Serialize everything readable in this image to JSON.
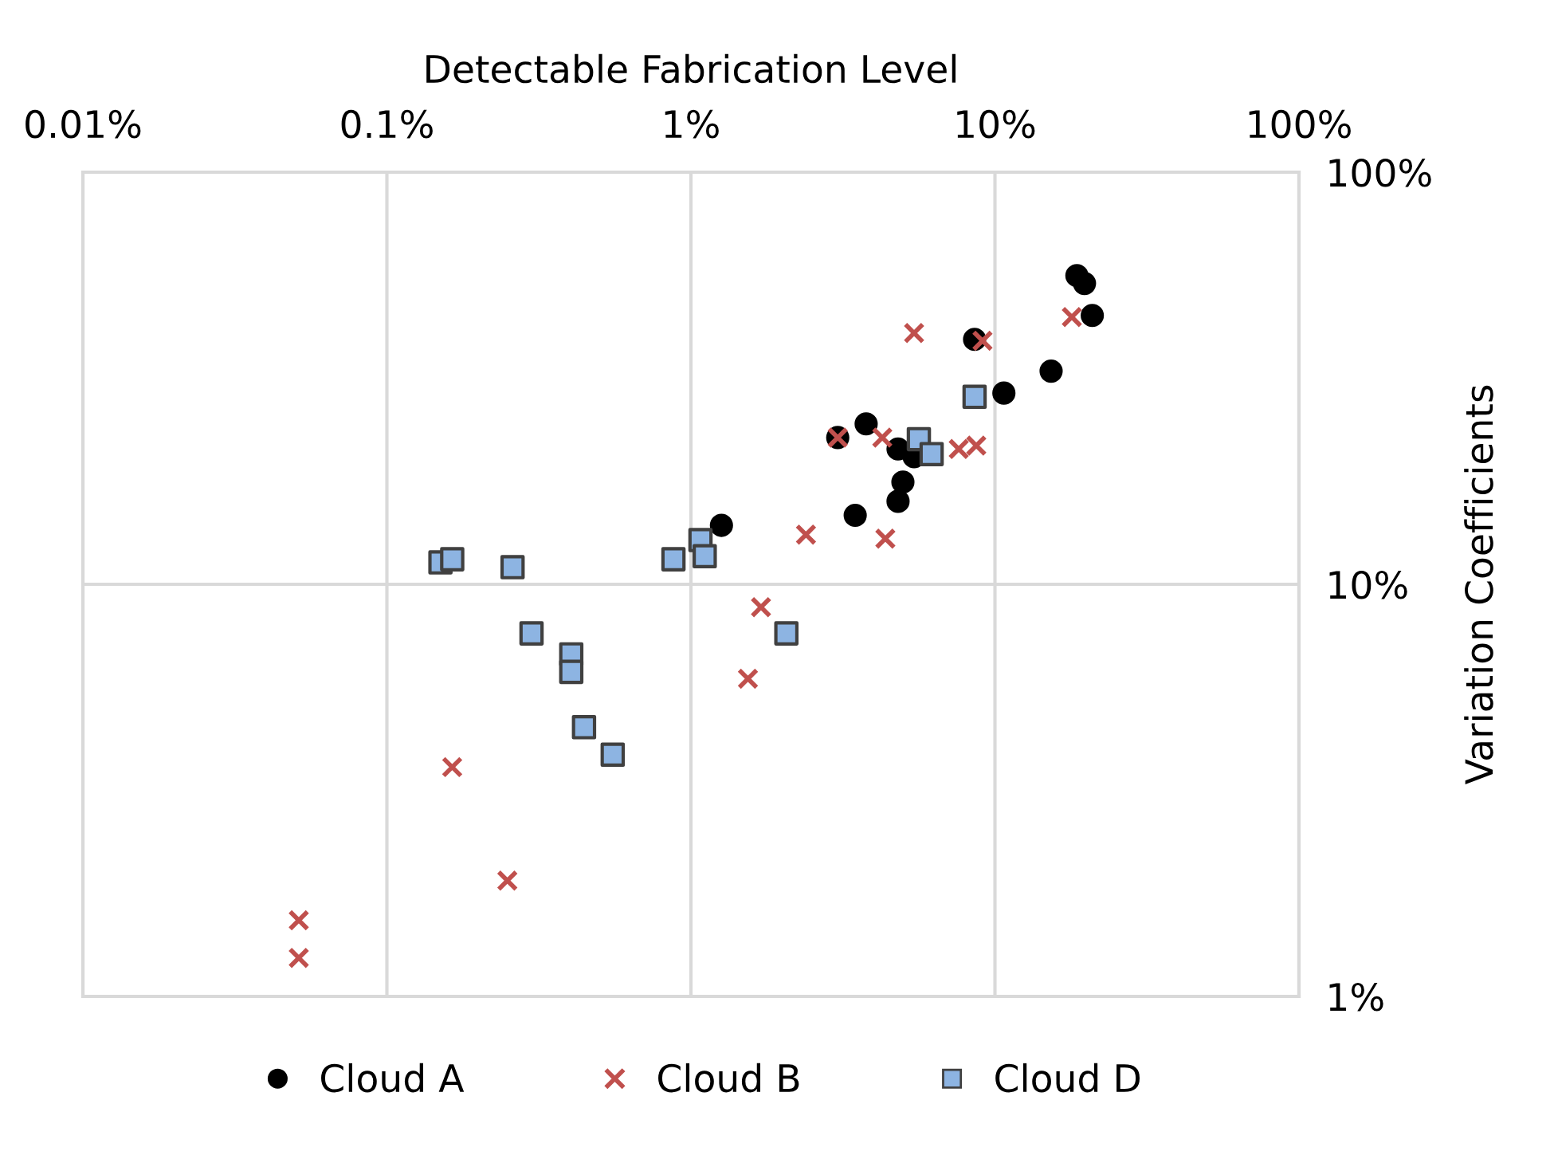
{
  "chart_data": {
    "type": "scatter",
    "xlabel": "Detectable Fabrication Level",
    "ylabel": "Variation Coefficients",
    "log": "xy",
    "grid": true,
    "legend": "bottom",
    "xlim": [
      0.01,
      100
    ],
    "ylim": [
      1,
      100
    ],
    "xticks": [
      {
        "value": 0.01,
        "label": "0.01%"
      },
      {
        "value": 0.1,
        "label": "0.1%"
      },
      {
        "value": 1,
        "label": "1%"
      },
      {
        "value": 10,
        "label": "10%"
      },
      {
        "value": 100,
        "label": "100%"
      }
    ],
    "yticks": [
      {
        "value": 1,
        "label": "1%"
      },
      {
        "value": 10,
        "label": "10%"
      },
      {
        "value": 100,
        "label": "100%"
      }
    ],
    "series": [
      {
        "name": "Cloud A",
        "color": "#000000",
        "marker": "circle",
        "x": [
          18.6,
          19.7,
          20.9,
          8.57,
          15.3,
          10.7,
          3.77,
          3.04,
          4.8,
          5.42,
          4.98,
          4.8,
          3.47,
          1.26
        ],
        "values": [
          56.1,
          53.7,
          44.9,
          39.3,
          32.9,
          29.1,
          24.5,
          22.7,
          21.3,
          20.4,
          17.7,
          15.9,
          14.7,
          13.9
        ]
      },
      {
        "name": "Cloud B",
        "color": "#c0504d",
        "marker": "cross",
        "x": [
          5.42,
          9.1,
          17.9,
          3.04,
          4.26,
          7.6,
          8.68,
          2.39,
          4.36,
          1.7,
          1.54,
          0.164,
          0.249,
          0.0513,
          0.0513
        ],
        "values": [
          40.7,
          39.0,
          44.5,
          22.7,
          22.7,
          21.3,
          21.7,
          13.2,
          12.9,
          8.8,
          5.9,
          3.6,
          1.91,
          1.53,
          1.24
        ]
      },
      {
        "name": "Cloud D",
        "color": "#8db4e2",
        "marker": "square",
        "x": [
          8.57,
          5.62,
          6.19,
          0.15,
          0.164,
          0.259,
          0.876,
          1.075,
          1.11,
          0.299,
          0.404,
          0.404,
          0.445,
          0.553,
          2.06
        ],
        "values": [
          28.5,
          22.5,
          20.7,
          11.3,
          11.5,
          11.0,
          11.5,
          12.8,
          11.7,
          7.6,
          6.76,
          6.13,
          4.5,
          3.86,
          7.6
        ]
      }
    ]
  }
}
